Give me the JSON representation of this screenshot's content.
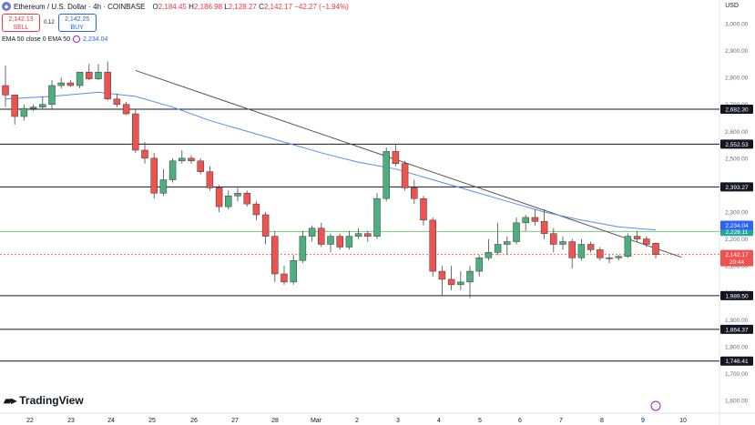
{
  "header": {
    "title": "Ethereum / U.S. Dollar · 4h · COINBASE",
    "o_label": "O",
    "o_value": "2,184.45",
    "h_label": "H",
    "h_value": "2,186.98",
    "l_label": "L",
    "l_value": "2,128.27",
    "c_label": "C",
    "c_value": "2,142.17",
    "change": "−42.27 (−1.94%)"
  },
  "trade": {
    "sell_price": "2,142.13",
    "sell_label": "SELL",
    "spread": "0.12",
    "buy_price": "2,142.25",
    "buy_label": "BUY"
  },
  "ema": {
    "label": "EMA 50 close 0 EMA 50",
    "value": "2,234.04"
  },
  "currency": "USD",
  "brand": "TradingView",
  "colors": {
    "up": "#26a69a",
    "up_fill": "#4caf7d",
    "down": "#ef5350",
    "ema": "#5b8def",
    "trendline": "#555555",
    "hline": "#131722"
  },
  "chart_data": {
    "type": "candlestick",
    "ylim": [
      1600,
      3000
    ],
    "y_ticks": [
      "3,000.00",
      "2,900.00",
      "2,800.00",
      "2,700.00",
      "2,600.00",
      "2,500.00",
      "2,400.00",
      "2,300.00",
      "2,200.00",
      "2,100.00",
      "2,000.00",
      "1,900.00",
      "1,800.00",
      "1,700.00",
      "1,600.00"
    ],
    "x_labels": [
      "22",
      "23",
      "24",
      "25",
      "26",
      "27",
      "28",
      "Mar",
      "2",
      "3",
      "4",
      "5",
      "6",
      "7",
      "8",
      "9",
      "10"
    ],
    "candles": [
      [
        2770,
        2845,
        2690,
        2735
      ],
      [
        2735,
        2735,
        2625,
        2655
      ],
      [
        2655,
        2700,
        2640,
        2685
      ],
      [
        2685,
        2700,
        2675,
        2690
      ],
      [
        2690,
        2730,
        2680,
        2700
      ],
      [
        2700,
        2790,
        2680,
        2770
      ],
      [
        2770,
        2800,
        2760,
        2780
      ],
      [
        2780,
        2790,
        2765,
        2770
      ],
      [
        2770,
        2820,
        2760,
        2820
      ],
      [
        2820,
        2850,
        2790,
        2795
      ],
      [
        2795,
        2850,
        2790,
        2820
      ],
      [
        2820,
        2860,
        2715,
        2720
      ],
      [
        2720,
        2740,
        2690,
        2700
      ],
      [
        2700,
        2710,
        2660,
        2665
      ],
      [
        2665,
        2680,
        2520,
        2530
      ],
      [
        2530,
        2560,
        2480,
        2500
      ],
      [
        2500,
        2520,
        2350,
        2370
      ],
      [
        2370,
        2460,
        2360,
        2420
      ],
      [
        2420,
        2500,
        2410,
        2490
      ],
      [
        2490,
        2530,
        2480,
        2500
      ],
      [
        2500,
        2510,
        2480,
        2490
      ],
      [
        2490,
        2500,
        2440,
        2450
      ],
      [
        2450,
        2470,
        2380,
        2390
      ],
      [
        2390,
        2400,
        2300,
        2320
      ],
      [
        2320,
        2380,
        2310,
        2360
      ],
      [
        2360,
        2390,
        2340,
        2370
      ],
      [
        2370,
        2380,
        2320,
        2330
      ],
      [
        2330,
        2340,
        2270,
        2290
      ],
      [
        2290,
        2300,
        2180,
        2210
      ],
      [
        2210,
        2230,
        2040,
        2070
      ],
      [
        2070,
        2100,
        2030,
        2040
      ],
      [
        2040,
        2140,
        2030,
        2120
      ],
      [
        2120,
        2230,
        2110,
        2210
      ],
      [
        2210,
        2250,
        2190,
        2240
      ],
      [
        2240,
        2260,
        2170,
        2180
      ],
      [
        2180,
        2220,
        2150,
        2210
      ],
      [
        2210,
        2220,
        2160,
        2170
      ],
      [
        2170,
        2230,
        2160,
        2210
      ],
      [
        2210,
        2240,
        2200,
        2220
      ],
      [
        2220,
        2230,
        2190,
        2210
      ],
      [
        2210,
        2370,
        2200,
        2350
      ],
      [
        2350,
        2540,
        2340,
        2525
      ],
      [
        2525,
        2550,
        2470,
        2480
      ],
      [
        2480,
        2490,
        2380,
        2390
      ],
      [
        2390,
        2420,
        2330,
        2350
      ],
      [
        2350,
        2360,
        2250,
        2270
      ],
      [
        2270,
        2280,
        2060,
        2080
      ],
      [
        2080,
        2100,
        1990,
        2050
      ],
      [
        2050,
        2100,
        2010,
        2030
      ],
      [
        2030,
        2080,
        2010,
        2040
      ],
      [
        2040,
        2100,
        1980,
        2080
      ],
      [
        2080,
        2140,
        2060,
        2130
      ],
      [
        2130,
        2200,
        2120,
        2150
      ],
      [
        2150,
        2260,
        2140,
        2180
      ],
      [
        2180,
        2210,
        2140,
        2190
      ],
      [
        2190,
        2280,
        2180,
        2260
      ],
      [
        2260,
        2290,
        2230,
        2280
      ],
      [
        2280,
        2310,
        2250,
        2265
      ],
      [
        2265,
        2310,
        2200,
        2220
      ],
      [
        2220,
        2240,
        2150,
        2180
      ],
      [
        2180,
        2210,
        2160,
        2190
      ],
      [
        2190,
        2200,
        2090,
        2130
      ],
      [
        2130,
        2200,
        2120,
        2180
      ],
      [
        2180,
        2190,
        2150,
        2160
      ],
      [
        2160,
        2170,
        2120,
        2130
      ],
      [
        2130,
        2140,
        2110,
        2130
      ],
      [
        2130,
        2140,
        2120,
        2135
      ],
      [
        2135,
        2220,
        2130,
        2210
      ],
      [
        2210,
        2230,
        2190,
        2200
      ],
      [
        2200,
        2210,
        2170,
        2180
      ],
      [
        2184,
        2187,
        2128,
        2142
      ]
    ],
    "ema50": [
      [
        0,
        2720
      ],
      [
        5,
        2730
      ],
      [
        10,
        2745
      ],
      [
        14,
        2730
      ],
      [
        18,
        2690
      ],
      [
        22,
        2640
      ],
      [
        26,
        2600
      ],
      [
        30,
        2560
      ],
      [
        34,
        2520
      ],
      [
        38,
        2485
      ],
      [
        42,
        2460
      ],
      [
        46,
        2420
      ],
      [
        50,
        2380
      ],
      [
        54,
        2340
      ],
      [
        58,
        2300
      ],
      [
        62,
        2270
      ],
      [
        66,
        2245
      ],
      [
        69,
        2236
      ],
      [
        70,
        2234
      ]
    ],
    "horizontal_levels": [
      {
        "value": 2682.3,
        "label": "2,682.30"
      },
      {
        "value": 2552.53,
        "label": "2,552.53"
      },
      {
        "value": 2393.27,
        "label": "2,393.27"
      },
      {
        "value": 1989.5,
        "label": "1,989.50"
      },
      {
        "value": 1864.37,
        "label": "1,864.37"
      },
      {
        "value": 1746.41,
        "label": "1,746.41"
      }
    ],
    "support_line": {
      "value": 2228.11,
      "label": "2,228.11"
    },
    "last_price": {
      "value": 2142.17,
      "label": "2,142.17",
      "countdown": "20:44"
    },
    "ema_badge": {
      "value": 2234.04,
      "label": "2,234.04"
    },
    "trendline": [
      [
        2826,
        14
      ],
      [
        2132,
        72
      ]
    ]
  }
}
